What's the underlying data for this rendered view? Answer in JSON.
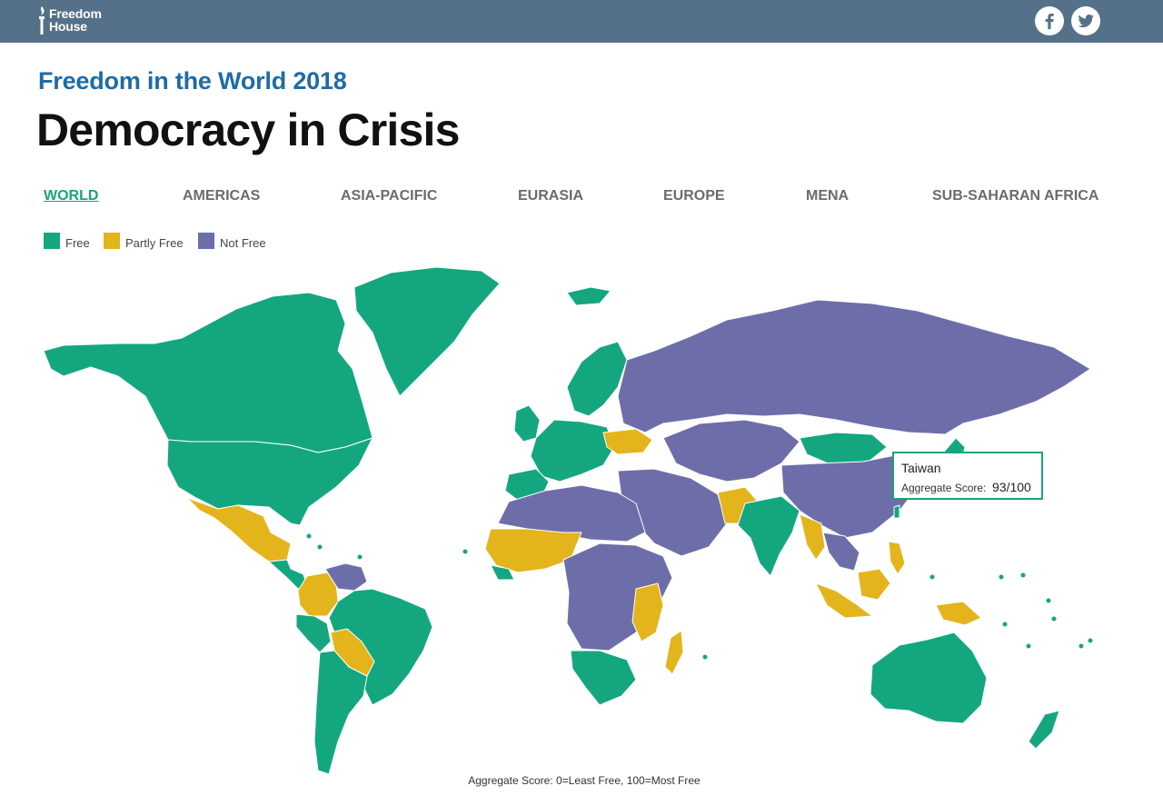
{
  "header": {
    "logo": {
      "line1": "Freedom",
      "line2": "House"
    },
    "social": [
      {
        "icon": "facebook-icon"
      },
      {
        "icon": "twitter-icon"
      }
    ],
    "bar_color": "#557189"
  },
  "title": {
    "kicker": "Freedom in the World 2018",
    "headline": "Democracy in Crisis"
  },
  "tabs": [
    {
      "label": "WORLD",
      "active": true
    },
    {
      "label": "AMERICAS",
      "active": false
    },
    {
      "label": "ASIA-PACIFIC",
      "active": false
    },
    {
      "label": "EURASIA",
      "active": false
    },
    {
      "label": "EUROPE",
      "active": false
    },
    {
      "label": "MENA",
      "active": false
    },
    {
      "label": "SUB-SAHARAN AFRICA",
      "active": false
    }
  ],
  "legend": [
    {
      "label": "Free",
      "color": "#14a77f"
    },
    {
      "label": "Partly Free",
      "color": "#e3b41c"
    },
    {
      "label": "Not Free",
      "color": "#6d6ea9"
    }
  ],
  "tooltip": {
    "country": "Taiwan",
    "score_label": "Aggregate Score:",
    "score_value": "93/100"
  },
  "scale_note": "Aggregate Score: 0=Least Free, 100=Most Free"
}
